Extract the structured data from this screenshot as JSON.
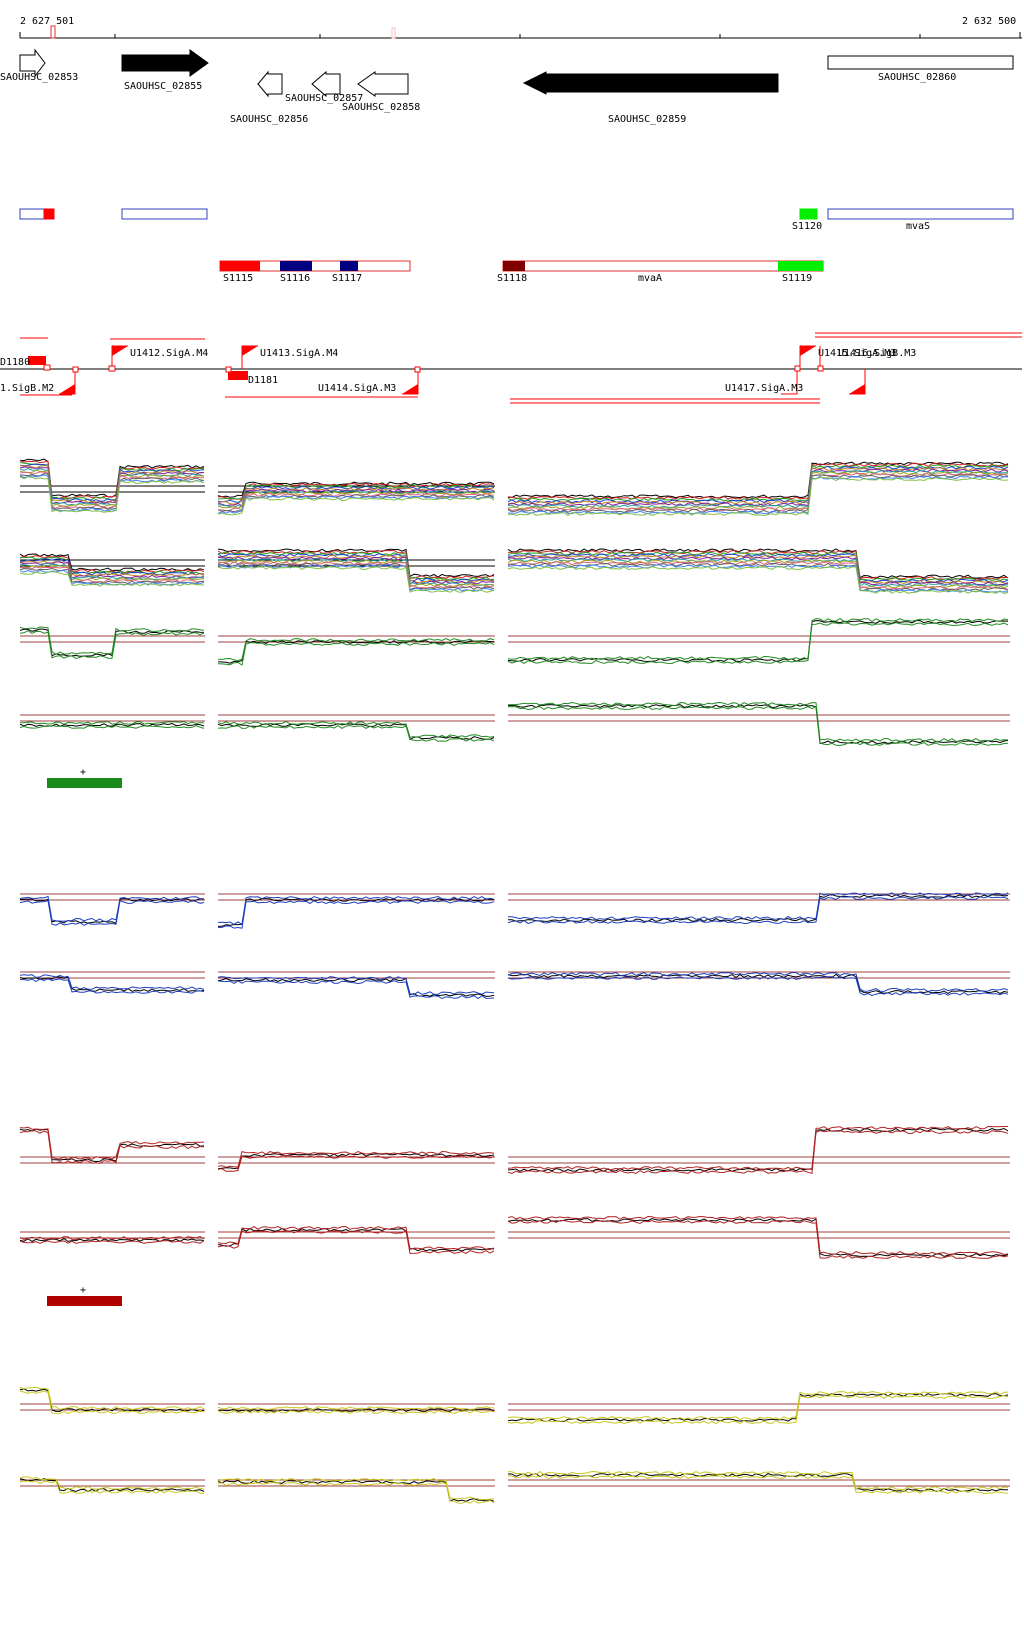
{
  "ruler": {
    "start": "2 627 501",
    "end": "2 632 500"
  },
  "genes": [
    {
      "name": "SAOUHSC_02853",
      "style": "open",
      "dir": "right"
    },
    {
      "name": "SAOUHSC_02855",
      "style": "filled",
      "dir": "right"
    },
    {
      "name": "SAOUHSC_02856",
      "style": "open",
      "dir": "left"
    },
    {
      "name": "SAOUHSC_02857",
      "style": "open",
      "dir": "left"
    },
    {
      "name": "SAOUHSC_02858",
      "style": "open",
      "dir": "left"
    },
    {
      "name": "SAOUHSC_02859",
      "style": "filled",
      "dir": "left"
    },
    {
      "name": "SAOUHSC_02860",
      "style": "open",
      "dir": "right"
    }
  ],
  "segments_plus": {
    "labels": [
      "S1120",
      "mvaS"
    ]
  },
  "segments_minus": {
    "labels": [
      "S1115",
      "S1116",
      "S1117",
      "S1118",
      "mvaA",
      "S1119"
    ]
  },
  "promoters": {
    "labels": [
      "U1412.SigA.M4",
      "U1413.SigA.M4",
      "U1414.SigA.M3",
      "U1417.SigA.M3",
      "U1415.SigA.M3",
      "U1416.SigB.M3",
      "1.SigB.M2",
      "D1180",
      "D1181"
    ]
  },
  "track_groups": [
    {
      "name": "multi",
      "color": "#808080"
    },
    {
      "name": "green",
      "color": "#228b22",
      "bar_label": "+"
    },
    {
      "name": "blue",
      "color": "#1e3fbf"
    },
    {
      "name": "red",
      "color": "#b22222",
      "bar_label": "+"
    },
    {
      "name": "yellow",
      "color": "#c8c820"
    }
  ],
  "colors": {
    "segment_outline": "#e03030",
    "plus_outline": "#3040c0",
    "bright_red": "#ff0000",
    "green_block": "#00ee00",
    "navy_block": "#000080",
    "maroon_block": "#800000",
    "legend_green": "#1a8a1a",
    "legend_red": "#b00000",
    "ref_line": "#a04040"
  }
}
